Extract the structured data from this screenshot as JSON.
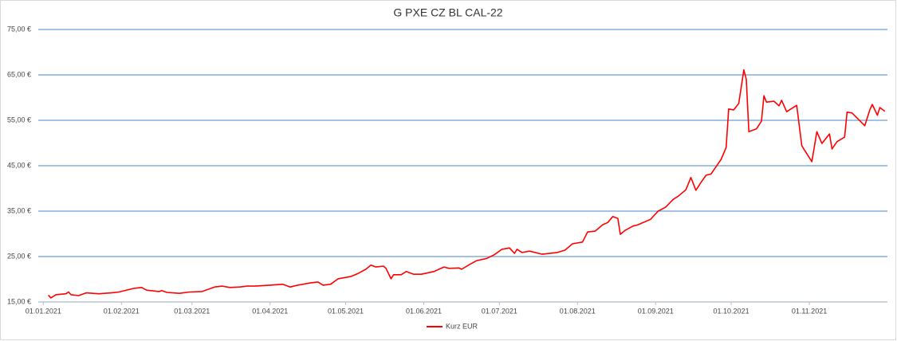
{
  "chart_data": {
    "type": "line",
    "title": "G PXE CZ BL CAL-22",
    "x": [
      "03.01.2021",
      "04.01.2021",
      "06.01.2021",
      "10.01.2021",
      "11.01.2021",
      "12.01.2021",
      "15.01.2021",
      "17.01.2021",
      "18.01.2021",
      "23.01.2021",
      "28.01.2021",
      "31.01.2021",
      "06.02.2021",
      "09.02.2021",
      "11.02.2021",
      "16.02.2021",
      "17.02.2021",
      "19.02.2021",
      "24.02.2021",
      "28.02.2021",
      "05.03.2021",
      "10.03.2021",
      "13.03.2021",
      "16.03.2021",
      "20.03.2021",
      "23.03.2021",
      "26.03.2021",
      "01.04.2021",
      "06.04.2021",
      "09.04.2021",
      "12.04.2021",
      "17.04.2021",
      "20.04.2021",
      "22.04.2021",
      "25.04.2021",
      "28.04.2021",
      "03.05.2021",
      "06.05.2021",
      "09.05.2021",
      "11.05.2021",
      "13.05.2021",
      "16.05.2021",
      "17.05.2021",
      "19.05.2021",
      "20.05.2021",
      "23.05.2021",
      "25.05.2021",
      "28.05.2021",
      "31.05.2021",
      "05.06.2021",
      "09.06.2021",
      "11.06.2021",
      "15.06.2021",
      "16.06.2021",
      "19.06.2021",
      "22.06.2021",
      "26.06.2021",
      "29.06.2021",
      "02.07.2021",
      "05.07.2021",
      "07.07.2021",
      "08.07.2021",
      "10.07.2021",
      "13.07.2021",
      "18.07.2021",
      "24.07.2021",
      "27.07.2021",
      "30.07.2021",
      "03.08.2021",
      "05.08.2021",
      "08.08.2021",
      "11.08.2021",
      "13.08.2021",
      "15.08.2021",
      "17.08.2021",
      "18.08.2021",
      "20.08.2021",
      "23.08.2021",
      "25.08.2021",
      "30.08.2021",
      "02.09.2021",
      "05.09.2021",
      "08.09.2021",
      "10.09.2021",
      "13.09.2021",
      "15.09.2021",
      "17.09.2021",
      "19.09.2021",
      "21.09.2021",
      "23.09.2021",
      "27.09.2021",
      "29.09.2021",
      "30.09.2021",
      "02.10.2021",
      "04.10.2021",
      "06.10.2021",
      "07.10.2021",
      "08.10.2021",
      "11.10.2021",
      "13.10.2021",
      "14.10.2021",
      "15.10.2021",
      "18.10.2021",
      "20.10.2021",
      "21.10.2021",
      "23.10.2021",
      "27.10.2021",
      "29.10.2021",
      "02.11.2021",
      "04.11.2021",
      "06.11.2021",
      "09.11.2021",
      "10.11.2021",
      "12.11.2021",
      "15.11.2021",
      "16.11.2021",
      "18.11.2021",
      "23.11.2021",
      "25.11.2021",
      "26.11.2021",
      "28.11.2021",
      "29.11.2021",
      "01.12.2021"
    ],
    "series": [
      {
        "name": "Kurz EUR",
        "color": "#ff0000",
        "values": [
          16.5,
          15.9,
          16.6,
          16.8,
          17.2,
          16.6,
          16.4,
          16.8,
          17.0,
          16.8,
          17.0,
          17.2,
          18.0,
          18.2,
          17.6,
          17.3,
          17.5,
          17.1,
          16.9,
          17.2,
          17.3,
          18.3,
          18.5,
          18.2,
          18.3,
          18.5,
          18.5,
          18.7,
          18.9,
          18.3,
          18.7,
          19.2,
          19.4,
          18.7,
          18.9,
          20.1,
          20.6,
          21.3,
          22.2,
          23.1,
          22.7,
          22.9,
          22.4,
          20.1,
          21.0,
          21.0,
          21.7,
          21.1,
          21.1,
          21.7,
          22.7,
          22.4,
          22.5,
          22.2,
          23.2,
          24.1,
          24.6,
          25.4,
          26.6,
          26.9,
          25.7,
          26.6,
          25.9,
          26.2,
          25.5,
          25.9,
          26.4,
          27.8,
          28.2,
          30.4,
          30.6,
          32.0,
          32.5,
          33.8,
          33.4,
          29.9,
          30.8,
          31.7,
          32.0,
          33.2,
          35.0,
          35.9,
          37.6,
          38.3,
          39.7,
          42.4,
          39.6,
          41.3,
          42.9,
          43.2,
          46.4,
          49.0,
          57.5,
          57.3,
          58.7,
          66.1,
          64.0,
          52.5,
          53.1,
          54.8,
          60.4,
          59.0,
          59.2,
          58.2,
          59.4,
          56.9,
          58.3,
          49.4,
          45.9,
          52.5,
          49.9,
          52.0,
          48.7,
          50.3,
          51.3,
          56.8,
          56.6,
          53.8,
          57.3,
          58.5,
          56.1,
          57.8,
          57.0
        ]
      }
    ],
    "xlim": [
      "30.12.2020",
      "02.12.2021"
    ],
    "xticks": [
      "01.01.2021",
      "01.02.2021",
      "01.03.2021",
      "01.04.2021",
      "01.05.2021",
      "01.06.2021",
      "01.07.2021",
      "01.08.2021",
      "01.09.2021",
      "01.10.2021",
      "01.11.2021"
    ],
    "ylim": [
      15,
      75
    ],
    "yticks": [
      {
        "value": 15,
        "label": "15,00 €"
      },
      {
        "value": 25,
        "label": "25,00 €"
      },
      {
        "value": 35,
        "label": "35,00 €"
      },
      {
        "value": 45,
        "label": "45,00 €"
      },
      {
        "value": 55,
        "label": "55,00 €"
      },
      {
        "value": 65,
        "label": "65,00 €"
      },
      {
        "value": 75,
        "label": "75,00 €"
      }
    ],
    "grid": true,
    "grid_color": "#6a9fd2",
    "legend": "bottom"
  }
}
